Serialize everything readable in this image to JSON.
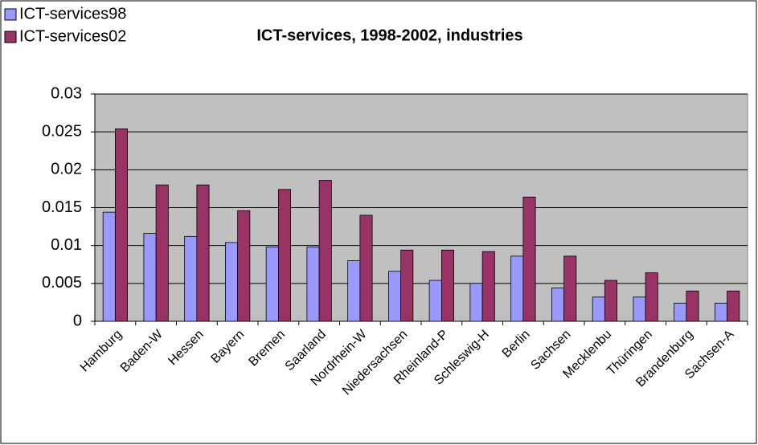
{
  "chart_data": {
    "type": "bar",
    "title": "ICT-services, 1998-2002, industries",
    "categories": [
      "Hamburg",
      "Baden-W",
      "Hessen",
      "Bayern",
      "Bremen",
      "Saarland",
      "Nordrhein-W",
      "Niedersachsen",
      "Rheinland-P",
      "Schleswig-H",
      "Berlin",
      "Sachsen",
      "Mecklenbu",
      "Thüringen",
      "Brandenburg",
      "Sachsen-A"
    ],
    "series": [
      {
        "name": "ICT-services98",
        "color": "#9999ff",
        "values": [
          0.0144,
          0.0116,
          0.0112,
          0.0104,
          0.0098,
          0.0098,
          0.008,
          0.0066,
          0.0054,
          0.005,
          0.0086,
          0.0044,
          0.0032,
          0.0032,
          0.0024,
          0.0024
        ]
      },
      {
        "name": "ICT-services02",
        "color": "#993366",
        "values": [
          0.0254,
          0.018,
          0.018,
          0.0146,
          0.0174,
          0.0186,
          0.014,
          0.0094,
          0.0094,
          0.0092,
          0.0164,
          0.0086,
          0.0054,
          0.0064,
          0.004,
          0.004
        ]
      }
    ],
    "ylim": [
      0,
      0.03
    ],
    "yticks": [
      0,
      0.005,
      0.01,
      0.015,
      0.02,
      0.025,
      0.03
    ],
    "grid": true,
    "legend": "top-left"
  }
}
